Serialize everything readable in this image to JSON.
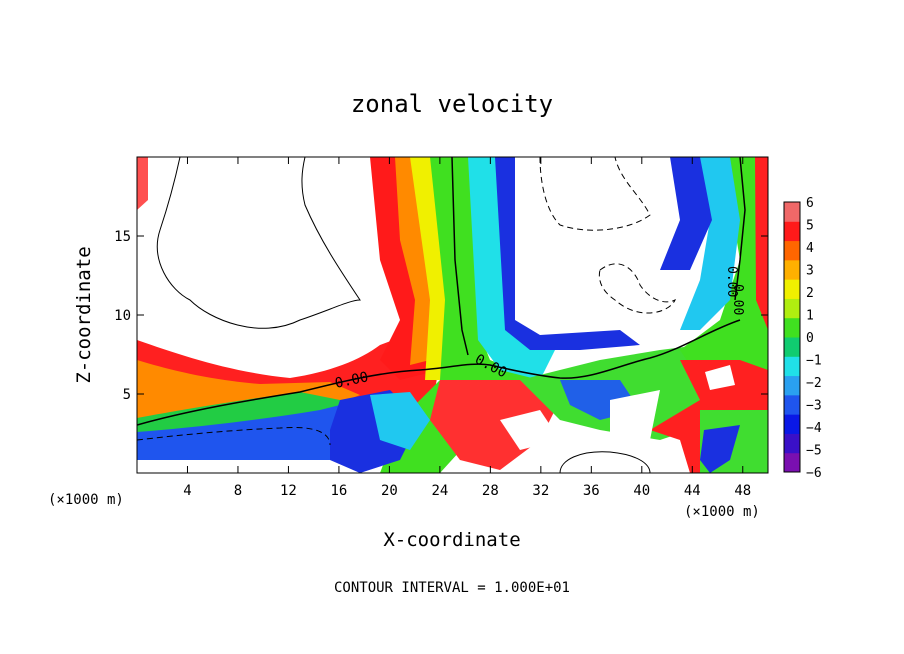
{
  "chart_data": {
    "type": "heatmap",
    "title": "zonal velocity",
    "xlabel": "X-coordinate",
    "ylabel": "Z-coordinate",
    "x_unit": "(×1000 m)",
    "x_unit_right": "(×1000 m)",
    "xlim": [
      0,
      50
    ],
    "ylim": [
      0,
      20
    ],
    "x_ticks": [
      4,
      8,
      12,
      16,
      20,
      24,
      28,
      32,
      36,
      40,
      44,
      48
    ],
    "y_ticks": [
      5,
      10,
      15
    ],
    "contour_labels": [
      "0.00",
      "0.00",
      "0.00",
      "0.00"
    ],
    "contour_interval_text": "CONTOUR INTERVAL = 1.000E+01",
    "colorbar": {
      "levels": [
        "6",
        "5",
        "4",
        "3",
        "2",
        "1",
        "0",
        "−1",
        "−2",
        "−3",
        "−4",
        "−5",
        "−6"
      ],
      "colors": [
        "#7a0fb0",
        "#3a10c8",
        "#0a18e6",
        "#1f55ee",
        "#2aa0f0",
        "#20e0e8",
        "#10cc70",
        "#40e020",
        "#b0ee10",
        "#f0f000",
        "#ffb000",
        "#ff6600",
        "#ff1a1a",
        "#f06868"
      ]
    }
  }
}
